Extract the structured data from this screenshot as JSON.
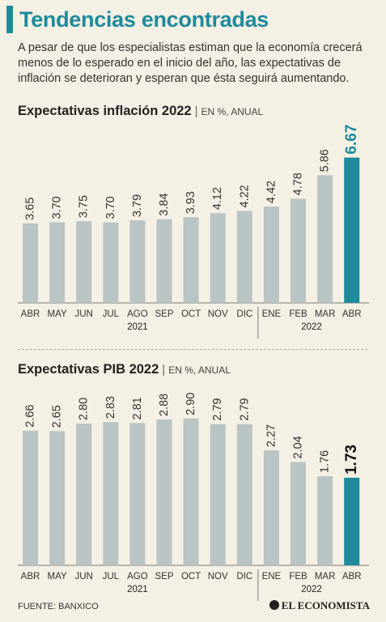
{
  "header": {
    "title": "Tendencias encontradas",
    "intro": "A pesar de que los especialistas estiman que la economía crecerá menos de lo esperado en el inicio del año, las expectativas de inflación se deterioran y esperan que ésta seguirá aumentando."
  },
  "chart_data": [
    {
      "type": "bar",
      "title": "Expectativas inflación 2022",
      "subtitle": "EN %, ANUAL",
      "categories": [
        "ABR",
        "MAY",
        "JUN",
        "JUL",
        "AGO",
        "SEP",
        "OCT",
        "NOV",
        "DIC",
        "ENE",
        "FEB",
        "MAR",
        "ABR"
      ],
      "values": [
        3.65,
        3.7,
        3.75,
        3.7,
        3.79,
        3.84,
        3.93,
        4.12,
        4.22,
        4.42,
        4.78,
        5.86,
        6.67
      ],
      "value_labels": [
        "3.65",
        "3.70",
        "3.75",
        "3.70",
        "3.79",
        "3.84",
        "3.93",
        "4.12",
        "4.22",
        "4.42",
        "4.78",
        "5.86",
        "6.67"
      ],
      "years": [
        "2021",
        "2022"
      ],
      "bar_color": "#b9c4c4",
      "highlight_color": "#1e8a9c"
    },
    {
      "type": "bar",
      "title": "Expectativas PIB 2022",
      "subtitle": "EN %, ANUAL",
      "categories": [
        "ABR",
        "MAY",
        "JUN",
        "JUL",
        "AGO",
        "SEP",
        "OCT",
        "NOV",
        "DIC",
        "ENE",
        "FEB",
        "MAR",
        "ABR"
      ],
      "values": [
        2.66,
        2.65,
        2.8,
        2.83,
        2.81,
        2.88,
        2.9,
        2.79,
        2.79,
        2.27,
        2.04,
        1.76,
        1.73
      ],
      "value_labels": [
        "2.66",
        "2.65",
        "2.80",
        "2.83",
        "2.81",
        "2.88",
        "2.90",
        "2.79",
        "2.79",
        "2.27",
        "2.04",
        "1.76",
        "1.73"
      ],
      "years": [
        "2021",
        "2022"
      ],
      "bar_color": "#b9c4c4",
      "highlight_color": "#1e8a9c"
    }
  ],
  "footer": {
    "source": "FUENTE: BANXICO",
    "brand": "EL ECONOMISTA"
  }
}
